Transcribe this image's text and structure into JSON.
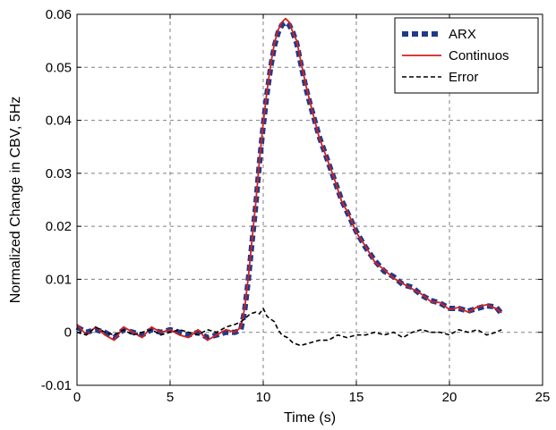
{
  "chart_data": {
    "type": "line",
    "xlabel": "Time (s)",
    "ylabel": "Normalized Change in CBV, 5Hz",
    "xlim": [
      0,
      25
    ],
    "ylim": [
      -0.01,
      0.06
    ],
    "xticks": [
      "0",
      "5",
      "10",
      "15",
      "20",
      "25"
    ],
    "yticks": [
      "-0.01",
      "0",
      "0.01",
      "0.02",
      "0.03",
      "0.04",
      "0.05",
      "0.06"
    ],
    "grid": true,
    "legend_position": "top-right",
    "series": [
      {
        "name": "ARX",
        "color": "#1f3a8a",
        "style": "thick-dashed",
        "x": [
          0.0,
          0.5,
          1.0,
          1.5,
          2.0,
          2.5,
          3.0,
          3.5,
          4.0,
          4.5,
          5.0,
          5.5,
          6.0,
          6.5,
          7.0,
          7.5,
          8.0,
          8.5,
          8.8,
          9.0,
          9.2,
          9.4,
          9.6,
          9.8,
          10.0,
          10.2,
          10.4,
          10.6,
          10.8,
          11.0,
          11.2,
          11.4,
          11.6,
          11.8,
          12.0,
          12.3,
          12.6,
          13.0,
          13.4,
          13.8,
          14.2,
          14.6,
          15.0,
          15.5,
          16.0,
          16.5,
          17.0,
          17.5,
          18.0,
          18.5,
          19.0,
          19.5,
          20.0,
          20.5,
          21.0,
          21.5,
          22.0,
          22.5,
          22.8
        ],
        "y": [
          0.001,
          0.0,
          0.0005,
          0.0,
          -0.001,
          0.0005,
          0.0,
          -0.0005,
          0.0005,
          0.0,
          0.0005,
          0.0,
          -0.0005,
          0.0,
          -0.001,
          -0.0005,
          0.0,
          0.0,
          0.0005,
          0.004,
          0.01,
          0.017,
          0.024,
          0.032,
          0.039,
          0.045,
          0.05,
          0.054,
          0.0565,
          0.058,
          0.0585,
          0.058,
          0.0565,
          0.0545,
          0.051,
          0.046,
          0.042,
          0.037,
          0.033,
          0.029,
          0.025,
          0.022,
          0.019,
          0.016,
          0.0135,
          0.0115,
          0.0105,
          0.009,
          0.0085,
          0.007,
          0.006,
          0.0055,
          0.0045,
          0.0045,
          0.004,
          0.0045,
          0.005,
          0.0048,
          0.0035
        ]
      },
      {
        "name": "Continuos",
        "color": "#d42020",
        "style": "solid",
        "x": [
          0.0,
          0.5,
          1.0,
          1.5,
          2.0,
          2.5,
          3.0,
          3.5,
          4.0,
          4.5,
          5.0,
          5.5,
          6.0,
          6.5,
          7.0,
          7.5,
          8.0,
          8.5,
          8.8,
          9.0,
          9.2,
          9.4,
          9.6,
          9.8,
          10.0,
          10.2,
          10.4,
          10.6,
          10.8,
          11.0,
          11.2,
          11.4,
          11.6,
          11.8,
          12.0,
          12.3,
          12.6,
          13.0,
          13.4,
          13.8,
          14.2,
          14.6,
          15.0,
          15.5,
          16.0,
          16.5,
          17.0,
          17.5,
          18.0,
          18.5,
          19.0,
          19.5,
          20.0,
          20.5,
          21.0,
          21.5,
          22.0,
          22.5,
          22.8
        ],
        "y": [
          0.0015,
          -0.0005,
          0.001,
          -0.0005,
          -0.0015,
          0.001,
          0.0,
          -0.001,
          0.001,
          0.0,
          0.0005,
          -0.0005,
          -0.001,
          0.0005,
          -0.0015,
          -0.0005,
          0.0005,
          0.0,
          0.001,
          0.0045,
          0.0105,
          0.0175,
          0.0245,
          0.0325,
          0.0395,
          0.0455,
          0.0505,
          0.0545,
          0.057,
          0.0585,
          0.0592,
          0.0585,
          0.0565,
          0.055,
          0.0515,
          0.0465,
          0.0422,
          0.0368,
          0.033,
          0.0292,
          0.0248,
          0.0222,
          0.0188,
          0.0162,
          0.0132,
          0.0118,
          0.0102,
          0.0092,
          0.0082,
          0.0072,
          0.0058,
          0.0056,
          0.0043,
          0.0047,
          0.0038,
          0.0048,
          0.0052,
          0.0045,
          0.0037
        ]
      },
      {
        "name": "Error",
        "color": "#000000",
        "style": "dashed",
        "x": [
          0.0,
          0.5,
          1.0,
          1.5,
          2.0,
          2.5,
          3.0,
          3.5,
          4.0,
          4.5,
          5.0,
          5.5,
          6.0,
          6.5,
          7.0,
          7.5,
          8.0,
          8.5,
          8.8,
          9.0,
          9.3,
          9.6,
          9.8,
          10.0,
          10.2,
          10.4,
          10.6,
          10.8,
          11.0,
          11.3,
          11.6,
          12.0,
          12.5,
          13.0,
          13.5,
          14.0,
          14.5,
          15.0,
          15.5,
          16.0,
          16.5,
          17.0,
          17.5,
          18.0,
          18.5,
          19.0,
          19.5,
          20.0,
          20.5,
          21.0,
          21.5,
          22.0,
          22.5,
          22.8
        ],
        "y": [
          0.0,
          -0.0005,
          0.001,
          0.0,
          -0.0005,
          0.0005,
          -0.0005,
          0.0,
          0.0005,
          -0.0005,
          0.0,
          0.0005,
          0.0,
          -0.0005,
          0.0005,
          0.0,
          0.001,
          0.0015,
          0.002,
          0.0025,
          0.0035,
          0.0038,
          0.0035,
          0.0045,
          0.003,
          0.0025,
          0.002,
          0.0005,
          -0.0005,
          -0.001,
          -0.002,
          -0.0025,
          -0.002,
          -0.0015,
          -0.0015,
          -0.0005,
          -0.001,
          -0.0005,
          -0.0005,
          0.0,
          -0.0005,
          0.0,
          -0.001,
          0.0,
          0.0005,
          0.0,
          0.0,
          -0.0005,
          0.0005,
          0.0,
          0.0005,
          -0.0005,
          0.0,
          0.0005
        ]
      }
    ]
  }
}
